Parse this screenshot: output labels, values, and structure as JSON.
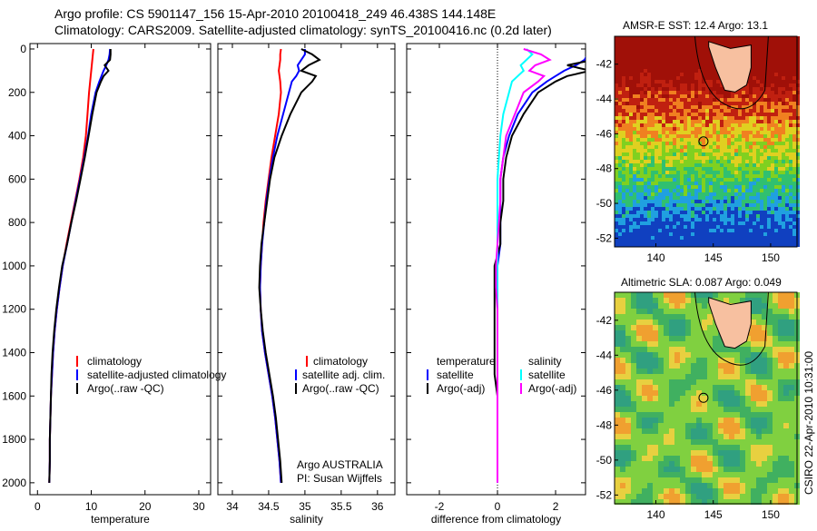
{
  "title_line1": "Argo profile: CS 5901147_156 15-Apr-2010 20100418_249 46.438S 144.148E",
  "title_line2": "Climatology: CARS2009. Satellite-adjusted climatology: synTS_20100416.nc (0.2d later)",
  "credit": "CSIRO 22-Apr-2010 10:31:00",
  "colors": {
    "clim": "#ff0000",
    "sat": "#0000ff",
    "argo": "#000000",
    "sal_sat": "#00ffff",
    "sal_argo": "#ff00ff"
  },
  "chart_data": [
    {
      "type": "line",
      "xlabel": "temperature",
      "ylabel": "",
      "xlim": [
        -1.4,
        32.2
      ],
      "ylim": [
        -25,
        2055
      ],
      "y_reversed": true,
      "xticks": [
        0,
        10,
        20,
        30
      ],
      "yticks": [
        0,
        200,
        400,
        600,
        800,
        1000,
        1200,
        1400,
        1600,
        1800,
        2000
      ],
      "depth": [
        0,
        25,
        50,
        75,
        100,
        125,
        150,
        200,
        300,
        400,
        500,
        600,
        700,
        800,
        900,
        1000,
        1100,
        1200,
        1300,
        1400,
        1500,
        1600,
        1700,
        1800,
        1900,
        2000
      ],
      "series": [
        {
          "name": "climatology",
          "color": "#ff0000",
          "values": [
            10.4,
            10.3,
            10.2,
            10.1,
            10.0,
            9.9,
            9.8,
            9.6,
            9.3,
            9.0,
            8.5,
            7.8,
            7.0,
            6.2,
            5.4,
            4.7,
            4.1,
            3.6,
            3.2,
            2.9,
            2.7,
            2.5,
            2.4,
            2.3,
            2.3,
            2.2
          ]
        },
        {
          "name": "satellite-adjusted climatology",
          "color": "#0000ff",
          "values": [
            13.5,
            13.4,
            13.2,
            12.8,
            12.3,
            11.9,
            11.5,
            10.8,
            10.0,
            9.4,
            8.7,
            7.9,
            7.1,
            6.3,
            5.5,
            4.7,
            4.1,
            3.6,
            3.2,
            2.9,
            2.7,
            2.5,
            2.4,
            2.3,
            2.3,
            2.2
          ]
        },
        {
          "name": "Argo(..raw -QC)",
          "color": "#000000",
          "values": [
            13.6,
            13.6,
            13.5,
            12.5,
            13.2,
            12.3,
            11.8,
            11.0,
            10.2,
            9.5,
            8.8,
            8.0,
            7.2,
            6.3,
            5.5,
            4.6,
            4.0,
            3.5,
            3.1,
            2.8,
            2.6,
            2.5,
            2.4,
            2.3,
            2.3,
            2.2
          ]
        }
      ],
      "legend": {
        "placement": "bottom-right",
        "title": "",
        "items": [
          "climatology",
          "satellite-adjusted climatology",
          "Argo(..raw -QC)"
        ]
      }
    },
    {
      "type": "line",
      "xlabel": "salinity",
      "ylabel": "",
      "xlim": [
        33.8,
        36.24
      ],
      "ylim": [
        -25,
        2055
      ],
      "y_reversed": true,
      "xticks": [
        34,
        34.5,
        35,
        35.5,
        36
      ],
      "depth": [
        0,
        25,
        50,
        75,
        100,
        125,
        150,
        200,
        300,
        400,
        500,
        600,
        700,
        800,
        900,
        1000,
        1100,
        1200,
        1300,
        1400,
        1500,
        1600,
        1700,
        1800,
        1900,
        2000
      ],
      "series": [
        {
          "name": "climatology",
          "color": "#ff0000",
          "values": [
            34.67,
            34.66,
            34.66,
            34.65,
            34.64,
            34.65,
            34.66,
            34.67,
            34.64,
            34.59,
            34.54,
            34.5,
            34.46,
            34.43,
            34.41,
            34.39,
            34.38,
            34.39,
            34.41,
            34.45,
            34.5,
            34.55,
            34.59,
            34.62,
            34.65,
            34.67
          ]
        },
        {
          "name": "satellite adj. clim.",
          "color": "#0000ff",
          "values": [
            35.0,
            35.0,
            34.95,
            34.9,
            34.92,
            34.88,
            34.82,
            34.78,
            34.7,
            34.62,
            34.56,
            34.51,
            34.47,
            34.44,
            34.41,
            34.39,
            34.38,
            34.39,
            34.41,
            34.45,
            34.5,
            34.55,
            34.59,
            34.62,
            34.65,
            34.67
          ]
        },
        {
          "name": "Argo(..raw -QC)",
          "color": "#000000",
          "values": [
            34.95,
            35.1,
            35.2,
            35.05,
            34.95,
            35.15,
            35.1,
            34.95,
            34.8,
            34.68,
            34.58,
            34.52,
            34.48,
            34.44,
            34.4,
            34.38,
            34.37,
            34.39,
            34.42,
            34.46,
            34.51,
            34.56,
            34.6,
            34.63,
            34.66,
            34.68
          ]
        }
      ],
      "legend": {
        "placement": "bottom-right",
        "title": "",
        "items": [
          "climatology",
          "satellite adj. clim.",
          "Argo(..raw -QC)"
        ]
      },
      "annotation": [
        "Argo AUSTRALIA",
        "PI: Susan Wijffels"
      ]
    },
    {
      "type": "line",
      "xlabel": "difference from climatology",
      "ylabel": "",
      "xlim": [
        -3.125,
        3.03
      ],
      "ylim": [
        -25,
        2055
      ],
      "y_reversed": true,
      "xticks": [
        -2,
        0,
        2
      ],
      "depth": [
        0,
        25,
        50,
        75,
        100,
        125,
        150,
        200,
        300,
        400,
        500,
        600,
        700,
        800,
        900,
        1000,
        1100,
        1200,
        1300,
        1400,
        1500,
        1600,
        1700,
        1800,
        1900,
        2000
      ],
      "series": [
        {
          "name": "temperature satellite",
          "color": "#0000ff",
          "values": [
            3.1,
            3.1,
            3.0,
            2.7,
            2.3,
            2.0,
            1.7,
            1.2,
            0.7,
            0.4,
            0.2,
            0.1,
            0.1,
            0.1,
            0.1,
            0,
            0,
            0,
            0,
            0,
            0,
            0,
            0,
            0,
            0,
            0
          ]
        },
        {
          "name": "temperature Argo(-adj)",
          "color": "#000000",
          "values": [
            3.2,
            3.3,
            3.3,
            2.4,
            3.2,
            2.4,
            2.0,
            1.4,
            0.9,
            0.5,
            0.3,
            0.2,
            0.2,
            0.1,
            0.1,
            -0.1,
            -0.1,
            -0.1,
            -0.1,
            -0.1,
            -0.1,
            0,
            0,
            0,
            0,
            0
          ]
        },
        {
          "name": "salinity satellite",
          "color": "#00ffff",
          "values": [
            1.0,
            1.2,
            1.0,
            0.8,
            0.9,
            0.7,
            0.5,
            0.4,
            0.2,
            0.1,
            0.05,
            0,
            0,
            0,
            0,
            0,
            0,
            0,
            0,
            0,
            0,
            0,
            0,
            0,
            0,
            0
          ]
        },
        {
          "name": "salinity Argo(-adj)",
          "color": "#ff00ff",
          "values": [
            0.9,
            1.5,
            1.8,
            1.3,
            1.1,
            1.6,
            1.4,
            0.9,
            0.6,
            0.3,
            0.2,
            0.1,
            0.1,
            0.05,
            0,
            -0.05,
            -0.05,
            0,
            0,
            0,
            0,
            0,
            0,
            0,
            0,
            0
          ]
        }
      ],
      "legend": {
        "placement": "bottom",
        "titles": [
          "temperature",
          "salinity"
        ],
        "items": [
          "satellite",
          "Argo(-adj)",
          "satellite",
          "Argo(-adj)"
        ]
      }
    },
    {
      "type": "heatmap",
      "title": "AMSR-E SST: 12.4 Argo: 13.1",
      "xlim": [
        136.4,
        152.3
      ],
      "ylim": [
        -52.5,
        -40.4
      ],
      "xticks": [
        140,
        145,
        150
      ],
      "yticks": [
        -42,
        -44,
        -46,
        -48,
        -50,
        -52
      ],
      "marker": {
        "lon": 144.148,
        "lat": -46.438
      }
    },
    {
      "type": "heatmap",
      "title": "Altimetric SLA: 0.087 Argo: 0.049",
      "xlim": [
        136.4,
        152.3
      ],
      "ylim": [
        -52.5,
        -40.4
      ],
      "xticks": [
        140,
        145,
        150
      ],
      "yticks": [
        -42,
        -44,
        -46,
        -48,
        -50,
        -52
      ],
      "marker": {
        "lon": 144.148,
        "lat": -46.438
      }
    }
  ]
}
